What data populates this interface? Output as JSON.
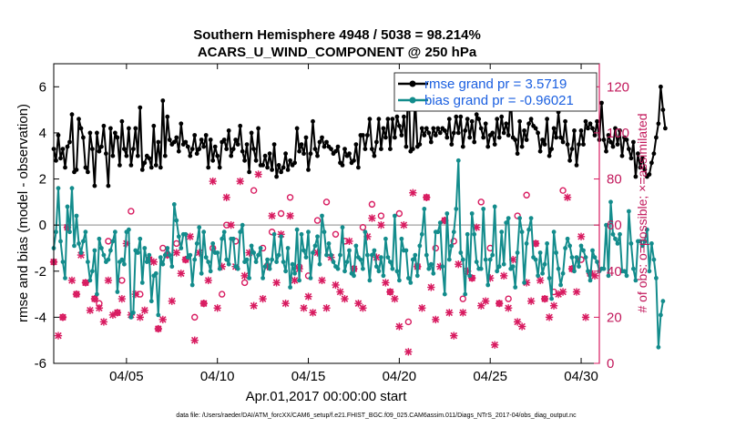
{
  "chart_data": {
    "type": "line",
    "title": "Southern Hemisphere 4948 / 5038 = 98.214%",
    "subtitle": "ACARS_U_WIND_COMPONENT @ 250 hPa",
    "xlabel": "Apr.01,2017 00:00:00 start",
    "ylabel": "rmse and bias (model - observation)",
    "ylabel_right": "# of obs: o=possible; ×=assimilated",
    "xlim": [
      1.0,
      31.0
    ],
    "ylim": [
      -6,
      7
    ],
    "ylim_right": [
      0,
      130
    ],
    "xticks": [
      5,
      10,
      15,
      20,
      25,
      30
    ],
    "xtick_labels": [
      "04/05",
      "04/10",
      "04/15",
      "04/20",
      "04/25",
      "04/30"
    ],
    "yticks": [
      -6,
      -4,
      -2,
      0,
      2,
      4,
      6
    ],
    "yticks_right": [
      0,
      20,
      40,
      60,
      80,
      100,
      120
    ],
    "grid": false,
    "legend_position": "top-right",
    "colors": {
      "rmse": "#000000",
      "bias": "#138c8c",
      "obs": "#d81b60",
      "zero": "#b0b0b0",
      "legend_text": "#1a5fe0"
    },
    "series": [
      {
        "name": "rmse grand pr = 3.5719",
        "values": [
          3.3,
          2.8,
          3.9,
          2.9,
          3.3,
          2.5,
          3.4,
          3.6,
          4.8,
          2.3,
          2.4,
          4.6,
          4.2,
          3.8,
          2.5,
          2.3,
          4.0,
          3.3,
          1.7,
          4.0,
          3.2,
          3.4,
          4.3,
          3.1,
          1.7,
          4.2,
          3.0,
          4.0,
          3.8,
          2.6,
          4.5,
          3.3,
          3.0,
          4.2,
          2.6,
          3.3,
          4.2,
          3.0,
          5.1,
          2.4,
          2.7,
          3.0,
          2.9,
          2.5,
          4.3,
          2.6,
          3.6,
          2.5,
          5.4,
          3.0,
          4.7,
          3.7,
          3.5,
          3.6,
          3.8,
          3.2,
          4.4,
          3.5,
          3.6,
          3.4,
          3.0,
          3.3,
          3.9,
          3.1,
          3.3,
          3.7,
          3.4,
          3.9,
          2.5,
          3.7,
          2.8,
          3.4,
          3.0,
          2.5,
          3.6,
          3.7,
          3.3,
          4.1,
          3.0,
          3.3,
          3.7,
          3.5,
          4.3,
          3.2,
          2.8,
          3.5,
          2.3,
          4.0,
          3.3,
          2.8,
          4.2,
          2.6,
          2.6,
          3.0,
          2.5,
          3.1,
          2.4,
          3.5,
          2.1,
          2.6,
          2.3,
          2.5,
          3.1,
          2.4,
          2.8,
          2.6,
          2.7,
          4.2,
          3.2,
          3.5,
          3.1,
          3.8,
          2.4,
          3.1,
          4.5,
          3.3,
          3.0,
          3.6,
          3.8,
          3.4,
          3.6,
          3.4,
          3.3,
          3.1,
          3.2,
          3.4,
          2.7,
          2.6,
          3.3,
          3.0,
          3.1,
          2.7,
          2.8,
          3.5,
          2.5,
          3.9,
          3.9,
          3.3,
          3.9,
          4.6,
          3.3,
          3.0,
          3.6,
          4.6,
          3.3,
          4.2,
          3.8,
          4.6,
          3.3,
          4.6,
          3.8,
          4.7,
          4.3,
          3.9,
          4.7,
          3.4,
          6.3,
          3.2,
          3.3,
          5.5,
          3.4,
          3.5,
          4.2,
          3.9,
          4.2,
          4.0,
          3.6,
          4.2,
          3.9,
          4.2,
          4.0,
          4.2,
          4.1,
          3.8,
          4.6,
          3.5,
          4.0,
          4.7,
          4.0,
          4.7,
          3.4,
          4.1,
          4.6,
          3.8,
          4.5,
          3.6,
          4.8,
          4.6,
          4.2,
          3.8,
          4.4,
          3.4,
          3.9,
          4.0,
          3.5,
          4.6,
          3.8,
          4.7,
          4.0,
          4.4,
          3.9,
          5.6,
          3.8,
          3.7,
          3.1,
          4.5,
          3.4,
          4.1,
          3.7,
          4.4,
          4.6,
          4.3,
          4.2,
          4.0,
          3.2,
          3.7,
          3.5,
          4.6,
          3.0,
          3.3,
          4.2,
          3.8,
          4.9,
          3.8,
          3.6,
          4.5,
          3.5,
          2.8,
          3.3,
          4.1,
          2.6,
          3.5,
          4.1,
          3.5,
          4.5,
          4.2,
          4.4,
          4.2,
          3.9,
          4.5,
          3.7,
          5.3,
          3.7,
          3.2,
          3.9,
          3.6,
          3.4,
          4.2,
          3.5,
          4.1,
          3.0,
          3.8,
          3.7,
          3.3,
          2.9,
          3.6,
          2.1,
          3.1,
          2.5,
          2.9,
          2.4,
          2.1,
          2.2,
          2.7,
          3.1,
          3.8,
          4.4,
          6.0,
          5.0,
          4.2
        ]
      },
      {
        "name": "bias grand pr = -0.96021",
        "values": [
          -1.0,
          -0.3,
          1.6,
          -0.7,
          -1.6,
          -2.3,
          0.8,
          -0.3,
          1.6,
          -0.9,
          0.4,
          -0.8,
          -1.2,
          -0.7,
          -0.3,
          -1.6,
          -2.4,
          -2.0,
          -1.1,
          -3.0,
          -0.6,
          -1.0,
          -1.3,
          -1.6,
          -1.5,
          -1.1,
          -0.7,
          -0.3,
          -2.9,
          -1.6,
          -1.5,
          -1.7,
          -0.3,
          -0.2,
          -4.0,
          -3.8,
          -1.1,
          -1.2,
          -0.6,
          -2.5,
          -1.0,
          -1.6,
          -1.3,
          -3.3,
          -2.2,
          -2.1,
          -3.9,
          -1.4,
          -1.7,
          -1.3,
          -1.0,
          -1.3,
          -1.8,
          0.9,
          0.2,
          -0.5,
          -1.0,
          -0.4,
          -0.4,
          -1.4,
          -1.3,
          -2.6,
          -1.5,
          -0.8,
          -0.1,
          -2.1,
          -0.3,
          -1.4,
          -1.6,
          -2.0,
          -0.8,
          -1.2,
          -1.2,
          -1.9,
          -0.6,
          -0.3,
          -1.5,
          -1.7,
          -0.6,
          -0.6,
          -1.8,
          -1.9,
          -0.3,
          0.0,
          -1.6,
          -1.5,
          -2.3,
          -0.9,
          -1.2,
          -1.6,
          -1.3,
          -1.0,
          -2.3,
          -1.8,
          -1.5,
          -1.9,
          -1.5,
          -0.4,
          -1.6,
          -1.3,
          -0.5,
          -1.6,
          -2.0,
          -1.0,
          -2.7,
          -1.7,
          -2.1,
          -0.2,
          -2.4,
          -0.4,
          -1.1,
          -1.4,
          -0.3,
          -2.3,
          -1.2,
          -0.9,
          -0.5,
          -1.7,
          0.4,
          -0.3,
          -1.3,
          -0.8,
          -1.3,
          -1.6,
          -1.8,
          -1.9,
          -1.3,
          -0.1,
          -2.0,
          -1.6,
          -1.1,
          -2.1,
          -2.2,
          -0.9,
          -1.4,
          -1.5,
          -1.9,
          -0.3,
          -1.3,
          -2.4,
          -1.3,
          -1.1,
          -1.8,
          -2.0,
          -1.4,
          -2.2,
          -0.6,
          -1.4,
          -1.6,
          -1.9,
          0.4,
          -2.0,
          -2.4,
          -0.6,
          -1.1,
          -1.1,
          -2.3,
          -2.5,
          -1.5,
          -1.3,
          -2.2,
          -0.9,
          -0.4,
          0.7,
          -1.3,
          -1.9,
          -1.7,
          -2.1,
          -0.3,
          -0.3,
          0.1,
          -1.8,
          -3.0,
          0.5,
          -1.5,
          -0.9,
          -0.3,
          0.7,
          2.8,
          -1.2,
          -1.5,
          -3.0,
          -0.4,
          -2.2,
          0.5,
          -0.4,
          -1.6,
          -1.9,
          -1.9,
          0.7,
          -1.5,
          -2.6,
          -1.5,
          -1.3,
          0.8,
          -2.0,
          -1.8,
          -0.3,
          -1.7,
          0.1,
          0.3,
          -1.9,
          -1.8,
          -2.7,
          -1.2,
          0.3,
          -0.3,
          -2.5,
          -0.8,
          -0.2,
          0.3,
          -1.4,
          -1.5,
          -2.2,
          -1.2,
          -2.1,
          -1.7,
          -0.8,
          -2.3,
          -3.2,
          -0.3,
          -1.2,
          -1.9,
          -2.6,
          -2.1,
          -1.0,
          -0.6,
          -0.9,
          -1.4,
          -2.0,
          -1.4,
          -1.8,
          -0.9,
          -1.1,
          -1.4,
          -2.0,
          -2.4,
          -1.1,
          -1.4,
          -1.6,
          -2.0,
          -1.9,
          -1.9,
          0.0,
          -2.2,
          1.0,
          -0.4,
          -0.6,
          -0.8,
          -0.4,
          -2.0,
          -2.0,
          -2.2,
          0.6,
          -0.8,
          -1.9,
          -2.4,
          -0.7,
          -0.7,
          -0.9,
          -0.7,
          -0.2,
          -2.0,
          -0.8,
          -1.5,
          -2.3,
          -5.3,
          -3.9,
          -3.3
        ]
      }
    ],
    "obs_possible": [
      [
        1.0,
        44
      ],
      [
        1.5,
        20
      ],
      [
        1.75,
        59
      ],
      [
        2.25,
        30
      ],
      [
        2.75,
        35
      ],
      [
        3.25,
        28
      ],
      [
        3.5,
        26
      ],
      [
        4.0,
        53
      ],
      [
        4.5,
        22
      ],
      [
        4.75,
        36
      ],
      [
        5.25,
        66
      ],
      [
        5.75,
        30
      ],
      [
        6.25,
        45
      ],
      [
        6.75,
        15
      ],
      [
        7.0,
        50
      ],
      [
        7.25,
        47
      ],
      [
        7.75,
        52
      ],
      [
        8.25,
        45
      ],
      [
        8.75,
        20
      ],
      [
        9.25,
        26
      ],
      [
        9.75,
        50
      ],
      [
        10.25,
        30
      ],
      [
        10.5,
        60
      ],
      [
        11.0,
        53
      ],
      [
        11.5,
        35
      ],
      [
        12.0,
        75
      ],
      [
        12.5,
        50
      ],
      [
        13.0,
        57
      ],
      [
        13.5,
        65
      ],
      [
        14.0,
        72
      ],
      [
        14.5,
        42
      ],
      [
        15.0,
        38
      ],
      [
        15.5,
        62
      ],
      [
        16.0,
        70
      ],
      [
        16.5,
        56
      ],
      [
        17.0,
        53
      ],
      [
        17.5,
        41
      ],
      [
        18.0,
        59
      ],
      [
        18.5,
        69
      ],
      [
        19.0,
        64
      ],
      [
        19.5,
        31
      ],
      [
        20.0,
        65
      ],
      [
        20.5,
        18
      ],
      [
        21.0,
        42
      ],
      [
        21.5,
        72
      ],
      [
        22.0,
        50
      ],
      [
        22.5,
        62
      ],
      [
        23.0,
        53
      ],
      [
        23.5,
        28
      ],
      [
        24.0,
        37
      ],
      [
        24.5,
        70
      ],
      [
        25.0,
        50
      ],
      [
        25.5,
        26
      ],
      [
        26.0,
        28
      ],
      [
        26.5,
        64
      ],
      [
        27.0,
        73
      ],
      [
        27.5,
        52
      ],
      [
        28.0,
        28
      ],
      [
        28.5,
        31
      ],
      [
        29.0,
        75
      ],
      [
        29.5,
        41
      ],
      [
        30.0,
        45
      ],
      [
        30.5,
        39
      ]
    ],
    "obs_assimilated": [
      [
        1.0,
        44
      ],
      [
        1.25,
        12
      ],
      [
        1.5,
        20
      ],
      [
        1.75,
        59
      ],
      [
        2.0,
        36
      ],
      [
        2.25,
        30
      ],
      [
        2.5,
        47
      ],
      [
        2.75,
        35
      ],
      [
        3.0,
        23
      ],
      [
        3.25,
        28
      ],
      [
        3.5,
        24
      ],
      [
        3.75,
        18
      ],
      [
        4.0,
        36
      ],
      [
        4.25,
        21
      ],
      [
        4.5,
        22
      ],
      [
        4.75,
        28
      ],
      [
        5.0,
        52
      ],
      [
        5.25,
        21
      ],
      [
        5.5,
        30
      ],
      [
        5.75,
        20
      ],
      [
        6.0,
        23
      ],
      [
        6.25,
        45
      ],
      [
        6.5,
        44
      ],
      [
        6.75,
        15
      ],
      [
        7.0,
        19
      ],
      [
        7.25,
        47
      ],
      [
        7.5,
        27
      ],
      [
        7.75,
        48
      ],
      [
        8.0,
        39
      ],
      [
        8.25,
        45
      ],
      [
        8.5,
        55
      ],
      [
        8.75,
        10
      ],
      [
        9.0,
        48
      ],
      [
        9.25,
        26
      ],
      [
        9.5,
        36
      ],
      [
        9.75,
        79
      ],
      [
        10.0,
        24
      ],
      [
        10.25,
        42
      ],
      [
        10.5,
        72
      ],
      [
        10.75,
        60
      ],
      [
        11.0,
        42
      ],
      [
        11.25,
        79
      ],
      [
        11.5,
        38
      ],
      [
        11.75,
        48
      ],
      [
        12.0,
        25
      ],
      [
        12.25,
        82
      ],
      [
        12.5,
        28
      ],
      [
        12.75,
        42
      ],
      [
        13.0,
        64
      ],
      [
        13.25,
        35
      ],
      [
        13.5,
        56
      ],
      [
        13.75,
        26
      ],
      [
        14.0,
        64
      ],
      [
        14.25,
        36
      ],
      [
        14.5,
        41
      ],
      [
        14.75,
        24
      ],
      [
        15.0,
        29
      ],
      [
        15.25,
        22
      ],
      [
        15.5,
        48
      ],
      [
        15.75,
        36
      ],
      [
        16.0,
        24
      ],
      [
        16.25,
        46
      ],
      [
        16.5,
        34
      ],
      [
        16.75,
        31
      ],
      [
        17.0,
        28
      ],
      [
        17.25,
        53
      ],
      [
        17.5,
        41
      ],
      [
        17.75,
        26
      ],
      [
        18.0,
        24
      ],
      [
        18.25,
        55
      ],
      [
        18.5,
        63
      ],
      [
        18.75,
        46
      ],
      [
        19.0,
        60
      ],
      [
        19.25,
        35
      ],
      [
        19.5,
        31
      ],
      [
        19.75,
        28
      ],
      [
        20.0,
        16
      ],
      [
        20.25,
        60
      ],
      [
        20.5,
        5
      ],
      [
        20.75,
        74
      ],
      [
        21.0,
        42
      ],
      [
        21.25,
        24
      ],
      [
        21.5,
        72
      ],
      [
        21.75,
        33
      ],
      [
        22.0,
        19
      ],
      [
        22.25,
        42
      ],
      [
        22.5,
        62
      ],
      [
        22.75,
        22
      ],
      [
        23.0,
        12
      ],
      [
        23.25,
        43
      ],
      [
        23.5,
        22
      ],
      [
        23.75,
        40
      ],
      [
        24.0,
        37
      ],
      [
        24.25,
        59
      ],
      [
        24.5,
        25
      ],
      [
        24.75,
        27
      ],
      [
        25.0,
        37
      ],
      [
        25.25,
        8
      ],
      [
        25.5,
        26
      ],
      [
        25.75,
        38
      ],
      [
        26.0,
        24
      ],
      [
        26.25,
        45
      ],
      [
        26.5,
        18
      ],
      [
        26.75,
        16
      ],
      [
        27.0,
        35
      ],
      [
        27.25,
        27
      ],
      [
        27.5,
        52
      ],
      [
        27.75,
        36
      ],
      [
        28.0,
        28
      ],
      [
        28.25,
        20
      ],
      [
        28.5,
        25
      ],
      [
        28.75,
        30
      ],
      [
        29.0,
        31
      ],
      [
        29.25,
        72
      ],
      [
        29.5,
        41
      ],
      [
        29.75,
        31
      ],
      [
        30.0,
        55
      ],
      [
        30.25,
        20
      ],
      [
        30.5,
        39
      ],
      [
        30.75,
        38
      ]
    ]
  },
  "footnote": "data file: /Users/raeder/DAI/ATM_forcXX/CAM6_setup/f.e21.FHIST_BGC.f09_025.CAM6assim.011/Diags_NTrS_2017-04/obs_diag_output.nc"
}
